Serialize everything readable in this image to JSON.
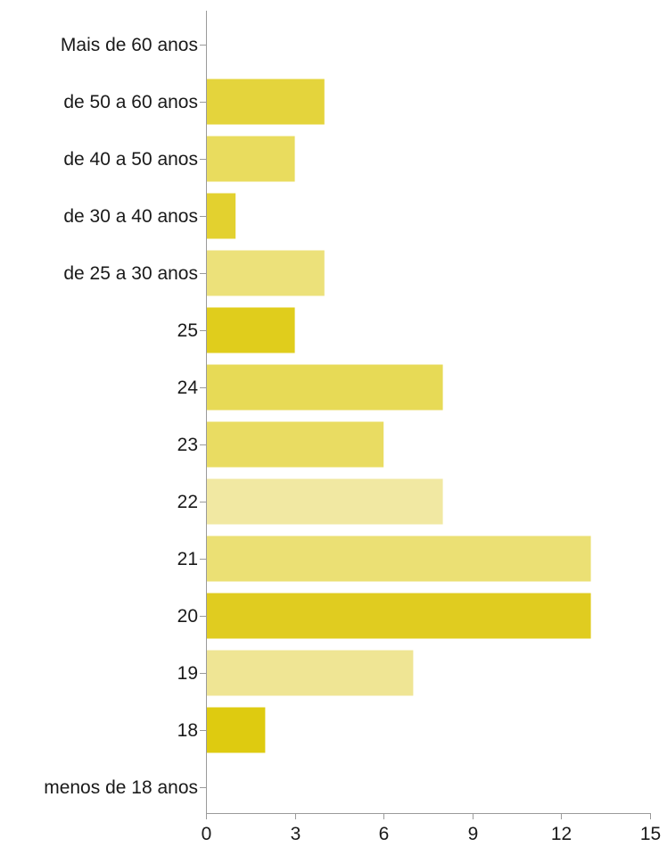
{
  "chart_data": {
    "type": "bar",
    "orientation": "horizontal",
    "categories": [
      "Mais de 60 anos",
      "de 50 a 60 anos",
      "de 40 a 50 anos",
      "de 30 a 40 anos",
      "de 25 a 30 anos",
      "25",
      "24",
      "23",
      "22",
      "21",
      "20",
      "19",
      "18",
      "menos de 18 anos"
    ],
    "values": [
      0,
      4,
      3,
      1,
      4,
      3,
      8,
      6,
      8,
      13,
      13,
      7,
      2,
      0
    ],
    "bar_colors": [
      "#e6d84a",
      "#e4d43c",
      "#e9dc5e",
      "#e3d12f",
      "#ece17a",
      "#e0cd1c",
      "#e7da56",
      "#e9dc62",
      "#f1e8a2",
      "#ebe074",
      "#e0cc20",
      "#efe594",
      "#decb10",
      "#e6d84a"
    ],
    "xlim": [
      0,
      15
    ],
    "xticks": [
      "0",
      "3",
      "6",
      "9",
      "12",
      "15"
    ],
    "grid": false,
    "title": "",
    "xlabel": "",
    "ylabel": ""
  }
}
